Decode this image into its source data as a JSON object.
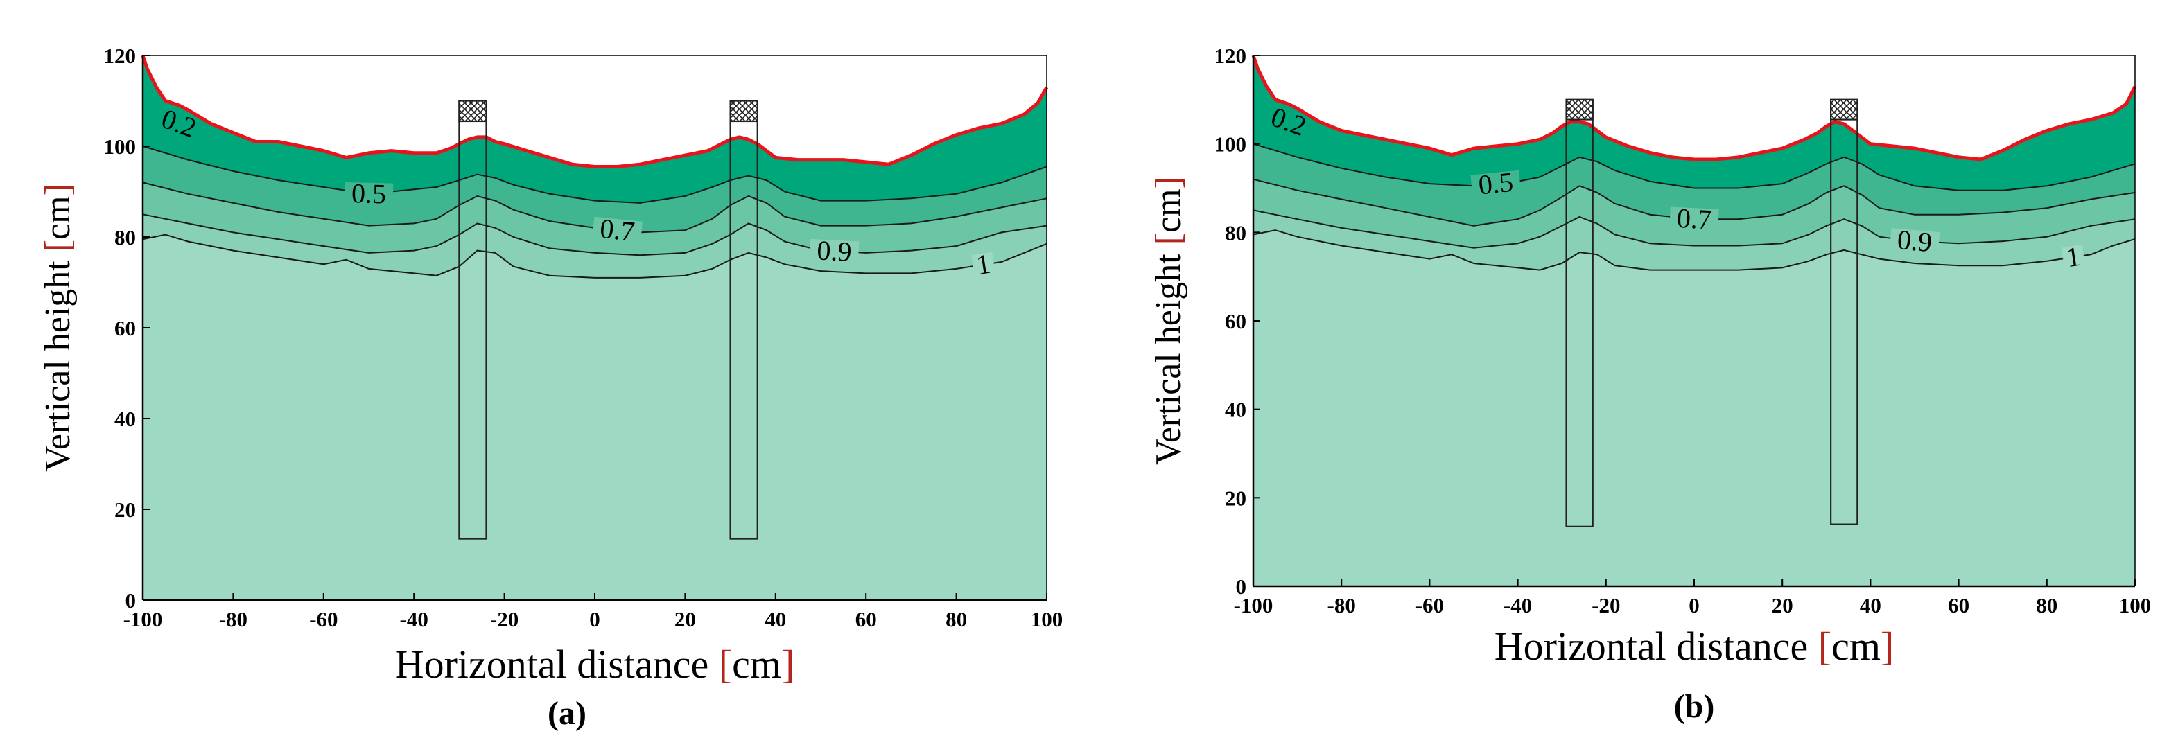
{
  "chart_data": [
    {
      "panel_id": "a",
      "type": "area",
      "panel_label": "(a)",
      "xlabel": "Horizontal distance",
      "xunit": "cm",
      "ylabel": "Vertical height",
      "yunit": "cm",
      "xlim": [
        -100,
        100
      ],
      "ylim": [
        0,
        120
      ],
      "xticks": [
        -100,
        -80,
        -60,
        -40,
        -20,
        0,
        20,
        40,
        60,
        80,
        100
      ],
      "yticks": [
        0,
        20,
        40,
        60,
        80,
        100,
        120
      ],
      "colors": {
        "free_surface": "#e8141c",
        "layers": [
          "#00a77a",
          "#3fb68f",
          "#6ac6a5",
          "#89d1b6",
          "#9ed9c3"
        ],
        "contour": "#1a1a1a"
      },
      "free_surface": {
        "x": [
          -100,
          -99,
          -97,
          -95,
          -92,
          -90,
          -85,
          -80,
          -75,
          -70,
          -65,
          -60,
          -55,
          -50,
          -45,
          -40,
          -35,
          -32,
          -30,
          -28,
          -26,
          -24,
          -22,
          -20,
          -15,
          -10,
          -5,
          0,
          5,
          10,
          15,
          20,
          25,
          28,
          30,
          32,
          34,
          36,
          38,
          40,
          45,
          50,
          55,
          60,
          65,
          70,
          75,
          80,
          85,
          90,
          95,
          98,
          100
        ],
        "y": [
          120,
          117,
          113,
          110,
          109,
          108,
          105,
          103,
          101,
          101,
          100,
          99,
          97.5,
          98.5,
          99,
          98.5,
          98.5,
          99.5,
          100.5,
          101.5,
          102,
          102,
          101,
          100.5,
          99,
          97.5,
          96,
          95.5,
          95.5,
          96,
          97,
          98,
          99,
          100.5,
          101.5,
          102,
          101.5,
          100.5,
          99,
          97.5,
          97,
          97,
          97,
          96.5,
          96,
          98,
          100.5,
          102.5,
          104,
          105,
          107,
          109.5,
          113
        ]
      },
      "contours": [
        {
          "label": "0.5",
          "label_x": -50,
          "x": [
            -100,
            -90,
            -80,
            -70,
            -60,
            -50,
            -40,
            -35,
            -30,
            -26,
            -22,
            -18,
            -10,
            0,
            10,
            20,
            26,
            30,
            34,
            38,
            42,
            50,
            60,
            70,
            80,
            90,
            100
          ],
          "y": [
            100,
            97,
            94.5,
            92.5,
            91,
            89.5,
            90.5,
            91,
            92.5,
            93.8,
            93,
            91.5,
            89.5,
            88,
            87.5,
            89,
            91,
            92.5,
            93.5,
            92.5,
            90,
            88,
            88,
            88.5,
            89.5,
            92,
            95.5
          ]
        },
        {
          "label": "0.7",
          "label_x": 5,
          "x": [
            -100,
            -90,
            -80,
            -70,
            -60,
            -50,
            -40,
            -35,
            -30,
            -26,
            -22,
            -18,
            -10,
            0,
            10,
            20,
            26,
            30,
            34,
            38,
            42,
            50,
            60,
            70,
            80,
            90,
            100
          ],
          "y": [
            92,
            89.5,
            87.5,
            85.5,
            84,
            82.5,
            83,
            84,
            87,
            89,
            88,
            86,
            83.5,
            82,
            81,
            81.5,
            84,
            87,
            89,
            87.5,
            84.5,
            82.5,
            82.5,
            83,
            84.5,
            86.5,
            88.5
          ]
        },
        {
          "label": "0.9",
          "label_x": 53,
          "x": [
            -100,
            -90,
            -80,
            -70,
            -60,
            -50,
            -40,
            -35,
            -30,
            -26,
            -22,
            -18,
            -10,
            0,
            10,
            20,
            26,
            30,
            34,
            38,
            42,
            50,
            60,
            70,
            80,
            90,
            100
          ],
          "y": [
            85,
            83,
            81,
            79.5,
            78,
            76.5,
            77,
            78,
            80.5,
            83,
            82,
            80,
            77.5,
            76.5,
            76,
            76.5,
            78.5,
            80.5,
            83,
            81.5,
            79,
            77,
            76.5,
            77,
            78,
            81,
            82.5
          ]
        },
        {
          "label": "1",
          "label_x": 86,
          "x": [
            -100,
            -95,
            -90,
            -80,
            -70,
            -60,
            -55,
            -50,
            -40,
            -35,
            -30,
            -26,
            -22,
            -18,
            -10,
            0,
            10,
            20,
            26,
            30,
            34,
            38,
            42,
            50,
            60,
            70,
            80,
            90,
            95,
            100
          ],
          "y": [
            79.5,
            80.5,
            79,
            77,
            75.5,
            74,
            75,
            73,
            72,
            71.5,
            73.5,
            77,
            76.5,
            73.5,
            71.5,
            71,
            71,
            71.5,
            73,
            75,
            76.5,
            75.5,
            74,
            72.5,
            72,
            72,
            73,
            74.5,
            76.5,
            78.5
          ]
        }
      ],
      "piers": [
        {
          "x_left": -30,
          "x_right": -24,
          "y_bottom": 13.5,
          "y_top": 110,
          "hatch_bottom": 105.5
        },
        {
          "x_left": 30,
          "x_right": 36,
          "y_bottom": 13.5,
          "y_top": 110,
          "hatch_bottom": 105.5
        }
      ]
    },
    {
      "panel_id": "b",
      "type": "area",
      "panel_label": "(b)",
      "xlabel": "Horizontal distance",
      "xunit": "cm",
      "ylabel": "Vertical height",
      "yunit": "cm",
      "xlim": [
        -100,
        100
      ],
      "ylim": [
        0,
        120
      ],
      "xticks": [
        -100,
        -80,
        -60,
        -40,
        -20,
        0,
        20,
        40,
        60,
        80,
        100
      ],
      "yticks": [
        0,
        20,
        40,
        60,
        80,
        100,
        120
      ],
      "colors": {
        "free_surface": "#e8141c",
        "layers": [
          "#00a77a",
          "#3fb68f",
          "#6ac6a5",
          "#89d1b6",
          "#9ed9c3"
        ],
        "contour": "#1a1a1a"
      },
      "free_surface": {
        "x": [
          -100,
          -99,
          -97,
          -95,
          -92,
          -90,
          -85,
          -80,
          -75,
          -70,
          -65,
          -60,
          -55,
          -50,
          -45,
          -40,
          -35,
          -32,
          -30,
          -28,
          -26,
          -24,
          -22,
          -20,
          -15,
          -10,
          -5,
          0,
          5,
          10,
          15,
          20,
          25,
          28,
          30,
          32,
          34,
          36,
          38,
          40,
          45,
          50,
          55,
          60,
          65,
          70,
          75,
          80,
          85,
          90,
          95,
          98,
          100
        ],
        "y": [
          120,
          117,
          113,
          110,
          109,
          108,
          105,
          103,
          102,
          101,
          100,
          99,
          97.5,
          99,
          99.5,
          100,
          101,
          102.5,
          104,
          105,
          105,
          104.5,
          103,
          101.5,
          99.5,
          98,
          97,
          96.5,
          96.5,
          97,
          98,
          99,
          101,
          102.5,
          104,
          105,
          104.5,
          103,
          101.5,
          100,
          99.5,
          99,
          98,
          97,
          96.5,
          98.5,
          101,
          103,
          104.5,
          105.5,
          107,
          109,
          113
        ]
      },
      "contours": [
        {
          "label": "0.5",
          "label_x": -45,
          "x": [
            -100,
            -90,
            -80,
            -70,
            -60,
            -50,
            -40,
            -35,
            -30,
            -26,
            -22,
            -18,
            -10,
            0,
            10,
            20,
            26,
            30,
            34,
            38,
            42,
            50,
            60,
            70,
            80,
            90,
            100
          ],
          "y": [
            100,
            97,
            94.5,
            92.5,
            91,
            90.5,
            91.5,
            92.5,
            95,
            97,
            96,
            94,
            91.5,
            90,
            90,
            91,
            93.5,
            95.5,
            97,
            95.5,
            93,
            90.5,
            89.5,
            89.5,
            90.5,
            92.5,
            95.5
          ]
        },
        {
          "label": "0.7",
          "label_x": 0,
          "x": [
            -100,
            -90,
            -80,
            -70,
            -60,
            -50,
            -40,
            -35,
            -30,
            -26,
            -22,
            -18,
            -10,
            0,
            10,
            20,
            26,
            30,
            34,
            38,
            42,
            50,
            60,
            70,
            80,
            90,
            100
          ],
          "y": [
            92,
            89.5,
            87.5,
            85.5,
            83.5,
            81.5,
            83,
            85,
            88,
            90.5,
            89,
            86.5,
            84,
            83,
            83,
            84,
            86.5,
            89,
            90.5,
            88.5,
            85.5,
            84,
            84,
            84.5,
            85.5,
            87.5,
            89
          ]
        },
        {
          "label": "0.9",
          "label_x": 50,
          "x": [
            -100,
            -90,
            -80,
            -70,
            -60,
            -50,
            -40,
            -35,
            -30,
            -26,
            -22,
            -18,
            -10,
            0,
            10,
            20,
            26,
            30,
            34,
            38,
            42,
            50,
            60,
            70,
            80,
            90,
            100
          ],
          "y": [
            85,
            83,
            81,
            79.5,
            78,
            76.5,
            77.5,
            79,
            81.5,
            83.5,
            82,
            79.5,
            77.5,
            77,
            77,
            77.5,
            79.5,
            81.5,
            83,
            81.5,
            79,
            78,
            77.5,
            78,
            79,
            81.5,
            83
          ]
        },
        {
          "label": "1",
          "label_x": 86,
          "x": [
            -100,
            -95,
            -90,
            -80,
            -70,
            -60,
            -55,
            -50,
            -40,
            -35,
            -30,
            -26,
            -22,
            -18,
            -10,
            0,
            10,
            20,
            26,
            30,
            34,
            38,
            42,
            50,
            60,
            70,
            80,
            90,
            95,
            100
          ],
          "y": [
            79.5,
            80.5,
            79,
            77,
            75.5,
            74,
            75,
            73,
            72,
            71.5,
            73,
            75.5,
            75,
            72.5,
            71.5,
            71.5,
            71.5,
            72,
            73.5,
            75,
            76,
            75,
            74,
            73,
            72.5,
            72.5,
            73.5,
            75,
            77,
            78.5
          ]
        }
      ],
      "piers": [
        {
          "x_left": -29,
          "x_right": -23,
          "y_bottom": 13.5,
          "y_top": 110,
          "hatch_bottom": 105.5
        },
        {
          "x_left": 31,
          "x_right": 37,
          "y_bottom": 14,
          "y_top": 110,
          "hatch_bottom": 105.5
        }
      ]
    }
  ]
}
